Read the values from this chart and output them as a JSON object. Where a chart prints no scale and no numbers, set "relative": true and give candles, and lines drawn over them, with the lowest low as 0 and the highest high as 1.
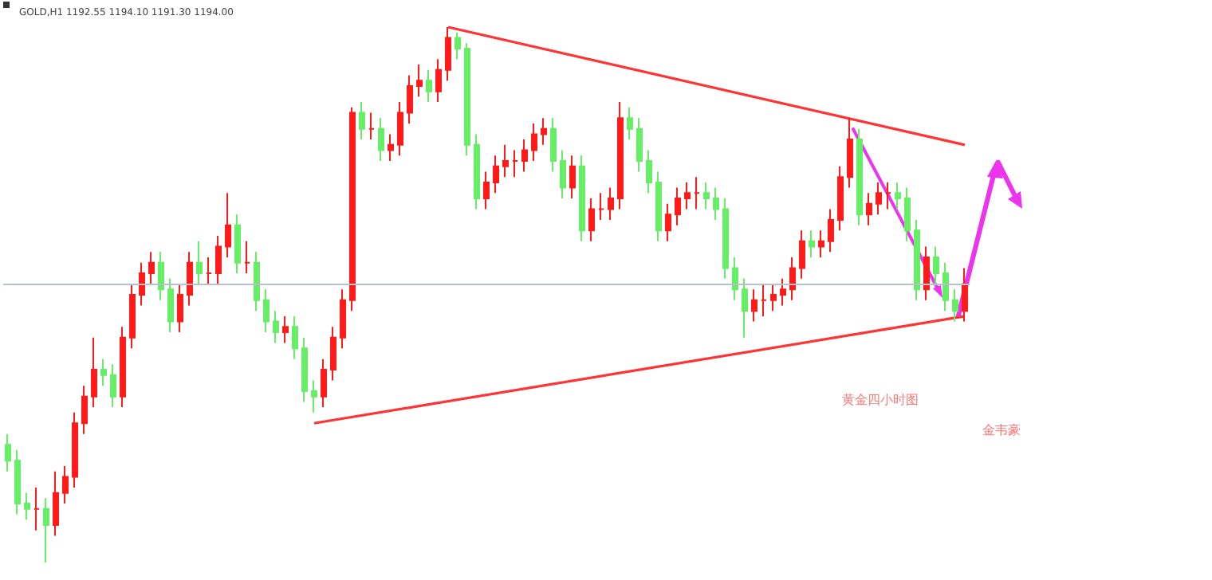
{
  "chart_data": {
    "type": "candlestick",
    "relative": true,
    "categories": [
      null,
      null,
      null,
      null,
      null,
      null,
      null,
      null,
      null,
      null,
      null,
      null,
      null,
      null,
      null,
      null,
      null,
      null,
      null,
      null,
      null,
      null,
      null,
      null,
      null,
      null,
      null,
      null,
      null,
      null,
      null,
      null,
      null,
      null,
      null,
      null,
      null,
      null,
      null,
      null,
      null,
      null,
      null,
      null,
      null,
      null,
      null,
      null,
      null,
      null,
      null,
      null,
      null,
      null,
      null,
      null,
      null,
      null,
      null,
      null,
      null,
      null,
      null,
      null,
      null,
      null,
      null,
      null,
      null,
      null,
      null,
      null,
      null,
      null,
      null,
      null,
      null,
      null,
      null,
      null,
      null,
      null,
      null,
      null,
      null,
      null,
      null,
      null,
      null,
      null,
      null,
      null,
      null,
      null,
      null,
      null,
      null,
      null,
      null,
      null,
      null
    ],
    "series": [
      {
        "ohlc": [
          [
            0.22,
            0.24,
            0.17,
            0.19
          ],
          [
            0.19,
            0.21,
            0.09,
            0.11
          ],
          [
            0.11,
            0.13,
            0.08,
            0.1
          ],
          [
            0.1,
            0.14,
            0.06,
            0.1
          ],
          [
            0.1,
            0.12,
            0,
            0.07
          ],
          [
            0.07,
            0.17,
            0.05,
            0.13
          ],
          [
            0.13,
            0.18,
            0.11,
            0.16
          ],
          [
            0.16,
            0.28,
            0.14,
            0.26
          ],
          [
            0.26,
            0.33,
            0.24,
            0.31
          ],
          [
            0.31,
            0.42,
            0.29,
            0.36
          ],
          [
            0.36,
            0.38,
            0.33,
            0.35
          ],
          [
            0.35,
            0.37,
            0.29,
            0.31
          ],
          [
            0.31,
            0.44,
            0.29,
            0.42
          ],
          [
            0.42,
            0.52,
            0.4,
            0.5
          ],
          [
            0.5,
            0.56,
            0.48,
            0.54
          ],
          [
            0.54,
            0.58,
            0.52,
            0.56
          ],
          [
            0.56,
            0.58,
            0.49,
            0.51
          ],
          [
            0.51,
            0.53,
            0.43,
            0.45
          ],
          [
            0.45,
            0.52,
            0.43,
            0.5
          ],
          [
            0.5,
            0.58,
            0.48,
            0.56
          ],
          [
            0.56,
            0.6,
            0.52,
            0.54
          ],
          [
            0.54,
            0.57,
            0.52,
            0.54
          ],
          [
            0.54,
            0.61,
            0.52,
            0.59
          ],
          [
            0.59,
            0.69,
            0.57,
            0.63
          ],
          [
            0.63,
            0.65,
            0.54,
            0.56
          ],
          [
            0.56,
            0.6,
            0.54,
            0.56
          ],
          [
            0.56,
            0.58,
            0.47,
            0.49
          ],
          [
            0.49,
            0.51,
            0.43,
            0.45
          ],
          [
            0.45,
            0.47,
            0.41,
            0.43
          ],
          [
            0.43,
            0.46,
            0.41,
            0.44
          ],
          [
            0.44,
            0.46,
            0.38,
            0.4
          ],
          [
            0.4,
            0.42,
            0.3,
            0.32
          ],
          [
            0.32,
            0.34,
            0.28,
            0.31
          ],
          [
            0.31,
            0.38,
            0.29,
            0.36
          ],
          [
            0.36,
            0.44,
            0.34,
            0.42
          ],
          [
            0.42,
            0.51,
            0.4,
            0.49
          ],
          [
            0.49,
            0.85,
            0.47,
            0.84
          ],
          [
            0.84,
            0.86,
            0.79,
            0.81
          ],
          [
            0.81,
            0.84,
            0.79,
            0.81
          ],
          [
            0.81,
            0.83,
            0.75,
            0.77
          ],
          [
            0.77,
            0.8,
            0.75,
            0.78
          ],
          [
            0.78,
            0.86,
            0.76,
            0.84
          ],
          [
            0.84,
            0.91,
            0.82,
            0.89
          ],
          [
            0.89,
            0.93,
            0.87,
            0.9
          ],
          [
            0.9,
            0.92,
            0.86,
            0.88
          ],
          [
            0.88,
            0.94,
            0.86,
            0.92
          ],
          [
            0.92,
            1,
            0.9,
            0.98
          ],
          [
            0.98,
            0.99,
            0.94,
            0.96
          ],
          [
            0.96,
            0.97,
            0.76,
            0.78
          ],
          [
            0.78,
            0.8,
            0.66,
            0.68
          ],
          [
            0.68,
            0.73,
            0.66,
            0.71
          ],
          [
            0.71,
            0.76,
            0.69,
            0.74
          ],
          [
            0.74,
            0.78,
            0.72,
            0.75
          ],
          [
            0.75,
            0.77,
            0.72,
            0.75
          ],
          [
            0.75,
            0.79,
            0.73,
            0.77
          ],
          [
            0.77,
            0.82,
            0.75,
            0.8
          ],
          [
            0.8,
            0.83,
            0.78,
            0.81
          ],
          [
            0.81,
            0.83,
            0.73,
            0.75
          ],
          [
            0.75,
            0.77,
            0.68,
            0.7
          ],
          [
            0.7,
            0.76,
            0.68,
            0.74
          ],
          [
            0.74,
            0.76,
            0.6,
            0.62
          ],
          [
            0.62,
            0.68,
            0.6,
            0.66
          ],
          [
            0.66,
            0.69,
            0.64,
            0.66
          ],
          [
            0.66,
            0.7,
            0.64,
            0.68
          ],
          [
            0.68,
            0.86,
            0.66,
            0.83
          ],
          [
            0.83,
            0.85,
            0.79,
            0.81
          ],
          [
            0.81,
            0.83,
            0.73,
            0.75
          ],
          [
            0.75,
            0.77,
            0.69,
            0.71
          ],
          [
            0.71,
            0.73,
            0.6,
            0.62
          ],
          [
            0.62,
            0.67,
            0.6,
            0.65
          ],
          [
            0.65,
            0.7,
            0.63,
            0.68
          ],
          [
            0.68,
            0.71,
            0.66,
            0.69
          ],
          [
            0.69,
            0.72,
            0.66,
            0.69
          ],
          [
            0.69,
            0.71,
            0.66,
            0.68
          ],
          [
            0.68,
            0.7,
            0.64,
            0.66
          ],
          [
            0.66,
            0.68,
            0.53,
            0.55
          ],
          [
            0.55,
            0.57,
            0.49,
            0.51
          ],
          [
            0.51,
            0.53,
            0.42,
            0.47
          ],
          [
            0.47,
            0.51,
            0.45,
            0.49
          ],
          [
            0.49,
            0.52,
            0.46,
            0.49
          ],
          [
            0.49,
            0.52,
            0.47,
            0.5
          ],
          [
            0.5,
            0.53,
            0.48,
            0.51
          ],
          [
            0.51,
            0.57,
            0.49,
            0.55
          ],
          [
            0.55,
            0.62,
            0.53,
            0.6
          ],
          [
            0.6,
            0.62,
            0.57,
            0.59
          ],
          [
            0.59,
            0.62,
            0.57,
            0.6
          ],
          [
            0.6,
            0.66,
            0.58,
            0.64
          ],
          [
            0.64,
            0.74,
            0.62,
            0.72
          ],
          [
            0.72,
            0.83,
            0.7,
            0.79
          ],
          [
            0.79,
            0.81,
            0.63,
            0.65
          ],
          [
            0.65,
            0.69,
            0.63,
            0.67
          ],
          [
            0.67,
            0.71,
            0.65,
            0.69
          ],
          [
            0.69,
            0.71,
            0.66,
            0.69
          ],
          [
            0.69,
            0.71,
            0.66,
            0.68
          ],
          [
            0.68,
            0.7,
            0.6,
            0.62
          ],
          [
            0.62,
            0.64,
            0.49,
            0.51
          ],
          [
            0.51,
            0.59,
            0.49,
            0.57
          ],
          [
            0.57,
            0.59,
            0.52,
            0.54
          ],
          [
            0.54,
            0.56,
            0.47,
            0.49
          ],
          [
            0.49,
            0.51,
            0.45,
            0.47
          ],
          [
            0.47,
            0.55,
            0.45,
            0.52
          ]
        ],
        "colors": [
          "#66ee66",
          "#66ee66",
          "#66ee66",
          "#ff1a1a",
          "#66ee66",
          "#ff1a1a",
          "#ff1a1a",
          "#ff1a1a",
          "#ff1a1a",
          "#ff1a1a",
          "#66ee66",
          "#66ee66",
          "#ff1a1a",
          "#ff1a1a",
          "#ff1a1a",
          "#ff1a1a",
          "#66ee66",
          "#66ee66",
          "#ff1a1a",
          "#ff1a1a",
          "#66ee66",
          "#ff1a1a",
          "#ff1a1a",
          "#ff1a1a",
          "#66ee66",
          "#ff1a1a",
          "#66ee66",
          "#66ee66",
          "#66ee66",
          "#ff1a1a",
          "#66ee66",
          "#66ee66",
          "#66ee66",
          "#ff1a1a",
          "#ff1a1a",
          "#ff1a1a",
          "#ff1a1a",
          "#66ee66",
          "#ff1a1a",
          "#66ee66",
          "#ff1a1a",
          "#ff1a1a",
          "#ff1a1a",
          "#ff1a1a",
          "#66ee66",
          "#ff1a1a",
          "#ff1a1a",
          "#66ee66",
          "#66ee66",
          "#66ee66",
          "#ff1a1a",
          "#ff1a1a",
          "#ff1a1a",
          "#ff1a1a",
          "#ff1a1a",
          "#ff1a1a",
          "#ff1a1a",
          "#66ee66",
          "#66ee66",
          "#ff1a1a",
          "#66ee66",
          "#ff1a1a",
          "#ff1a1a",
          "#ff1a1a",
          "#ff1a1a",
          "#66ee66",
          "#66ee66",
          "#66ee66",
          "#66ee66",
          "#ff1a1a",
          "#ff1a1a",
          "#ff1a1a",
          "#ff1a1a",
          "#66ee66",
          "#66ee66",
          "#66ee66",
          "#66ee66",
          "#66ee66",
          "#ff1a1a",
          "#ff1a1a",
          "#ff1a1a",
          "#ff1a1a",
          "#ff1a1a",
          "#ff1a1a",
          "#66ee66",
          "#ff1a1a",
          "#ff1a1a",
          "#ff1a1a",
          "#ff1a1a",
          "#66ee66",
          "#ff1a1a",
          "#ff1a1a",
          "#ff1a1a",
          "#66ee66",
          "#66ee66",
          "#66ee66",
          "#ff1a1a",
          "#66ee66",
          "#66ee66",
          "#66ee66",
          "#ff1a1a"
        ]
      },
      {
        "type": "line",
        "color": "#ff3333",
        "values": [
          null,
          null,
          null,
          null,
          null,
          null,
          null,
          null,
          null,
          null,
          null,
          null,
          null,
          null,
          null,
          null,
          null,
          null,
          null,
          null,
          null,
          null,
          null,
          null,
          null,
          null,
          null,
          null,
          null,
          null,
          null,
          null,
          null,
          null,
          null,
          null,
          null,
          null,
          null,
          null,
          null,
          null,
          null,
          null,
          null,
          null,
          1,
          null,
          null,
          null,
          null,
          null,
          null,
          null,
          null,
          null,
          null,
          null,
          null,
          null,
          null,
          null,
          null,
          null,
          null,
          null,
          null,
          null,
          null,
          null,
          null,
          null,
          null,
          null,
          null,
          null,
          null,
          null,
          null,
          null,
          null,
          null,
          null,
          null,
          null,
          null,
          null,
          null,
          null,
          null,
          null,
          null,
          null,
          null,
          null,
          null,
          null,
          null,
          null,
          null,
          0.78
        ]
      },
      {
        "type": "line",
        "color": "#ff3333",
        "values": [
          null,
          null,
          null,
          null,
          null,
          null,
          null,
          null,
          null,
          null,
          null,
          null,
          null,
          null,
          null,
          null,
          null,
          null,
          null,
          null,
          null,
          null,
          null,
          null,
          null,
          null,
          null,
          null,
          null,
          null,
          null,
          null,
          0.26,
          null,
          null,
          null,
          null,
          null,
          null,
          null,
          null,
          null,
          null,
          null,
          null,
          null,
          null,
          null,
          null,
          null,
          null,
          null,
          null,
          null,
          null,
          null,
          null,
          null,
          null,
          null,
          null,
          null,
          null,
          null,
          null,
          null,
          null,
          null,
          null,
          null,
          null,
          null,
          null,
          null,
          null,
          null,
          null,
          null,
          null,
          null,
          null,
          null,
          null,
          null,
          null,
          null,
          null,
          null,
          null,
          null,
          null,
          null,
          null,
          null,
          null,
          null,
          null,
          null,
          null,
          null,
          0.46
        ]
      }
    ],
    "ref_lines": [
      {
        "axis": "y",
        "value": 0.52,
        "color": "#b8c0cc"
      }
    ],
    "annotations": [
      "GOLD,H1 1192.55 1194.10 1191.30 1194.00",
      "黄金四小时图",
      "金韦豪"
    ]
  }
}
